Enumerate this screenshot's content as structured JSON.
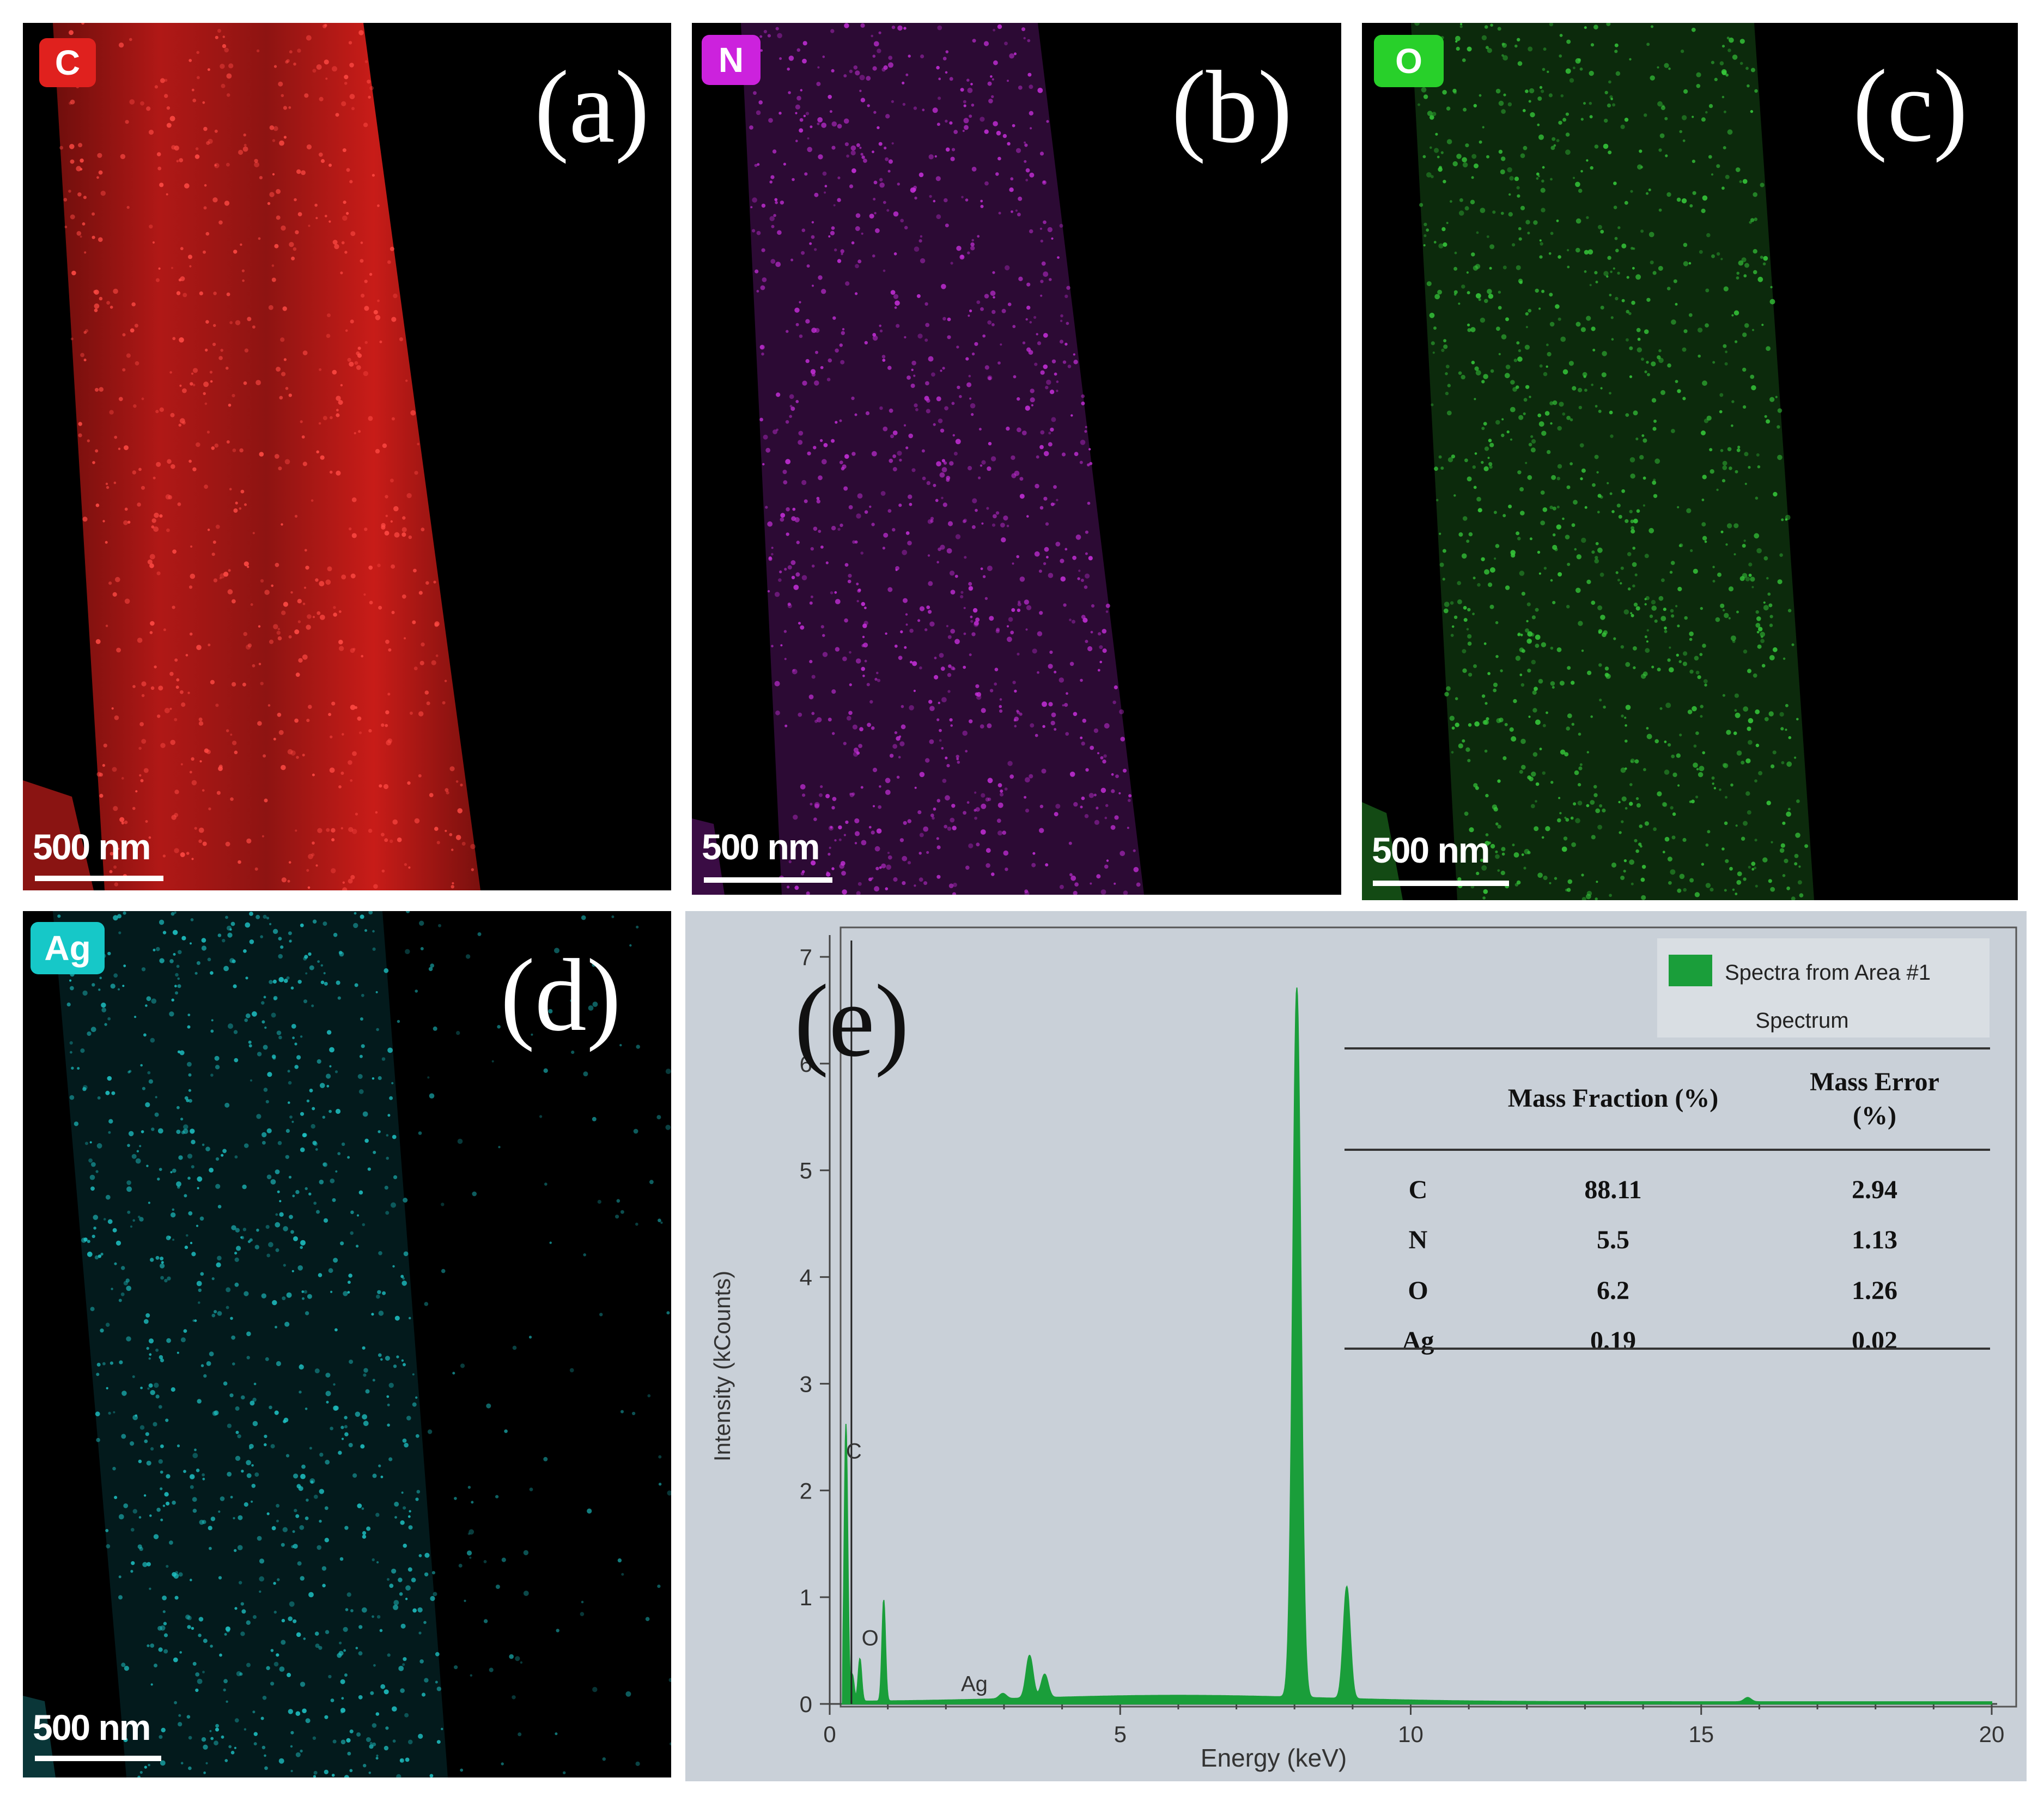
{
  "figure": {
    "panels": [
      {
        "letter": "(a)",
        "element": "C",
        "color": "#e0211e",
        "scale_label": "500 nm"
      },
      {
        "letter": "(b)",
        "element": "N",
        "color": "#cc22dd",
        "scale_label": "500 nm"
      },
      {
        "letter": "(c)",
        "element": "O",
        "color": "#28d02a",
        "scale_label": "500 nm"
      },
      {
        "letter": "(d)",
        "element": "Ag",
        "color": "#16c8c8",
        "scale_label": "500 nm"
      }
    ],
    "panel_e": {
      "letter": "(e)",
      "legend": {
        "series_label": "Spectra from Area #1",
        "subtitle": "Spectrum",
        "swatch_color": "#1a9e3a"
      },
      "table": {
        "headers": [
          "",
          "Mass Fraction (%)",
          "Mass Error (%)"
        ],
        "header_lines": {
          "fraction": "Mass Fraction (%)",
          "error_line1": "Mass Error",
          "error_line2": "(%)"
        },
        "rows": [
          {
            "element": "C",
            "fraction": "88.11",
            "error": "2.94"
          },
          {
            "element": "N",
            "fraction": "5.5",
            "error": "1.13"
          },
          {
            "element": "O",
            "fraction": "6.2",
            "error": "1.26"
          },
          {
            "element": "Ag",
            "fraction": "0.19",
            "error": "0.02"
          }
        ]
      }
    }
  },
  "chart_data": {
    "type": "line",
    "title": "",
    "xlabel": "Energy (keV)",
    "ylabel": "Intensity (kCounts)",
    "xlim": [
      0,
      20
    ],
    "ylim": [
      0,
      7
    ],
    "xticks": [
      0,
      5,
      10,
      15,
      20
    ],
    "yticks": [
      0,
      1,
      2,
      3,
      4,
      5,
      6,
      7
    ],
    "series": [
      {
        "name": "Spectra from Area #1",
        "color": "#1a9e3a",
        "fill": true,
        "peaks": [
          {
            "x": 0.28,
            "y": 2.6,
            "label": "C"
          },
          {
            "x": 0.39,
            "y": 0.25,
            "label": ""
          },
          {
            "x": 0.52,
            "y": 0.4,
            "label": "O"
          },
          {
            "x": 0.93,
            "y": 0.95,
            "label": ""
          },
          {
            "x": 2.98,
            "y": 0.05,
            "label": "Ag"
          },
          {
            "x": 3.44,
            "y": 0.4,
            "label": ""
          },
          {
            "x": 3.7,
            "y": 0.22,
            "label": ""
          },
          {
            "x": 8.04,
            "y": 6.65,
            "label": ""
          },
          {
            "x": 8.9,
            "y": 1.05,
            "label": ""
          },
          {
            "x": 15.8,
            "y": 0.04,
            "label": ""
          }
        ]
      }
    ],
    "annotations": [
      {
        "x": 0.28,
        "y": 2.3,
        "text": "C"
      },
      {
        "x": 0.55,
        "y": 0.55,
        "text": "O"
      },
      {
        "x": 3.0,
        "y": 0.12,
        "text": "Ag"
      }
    ]
  }
}
